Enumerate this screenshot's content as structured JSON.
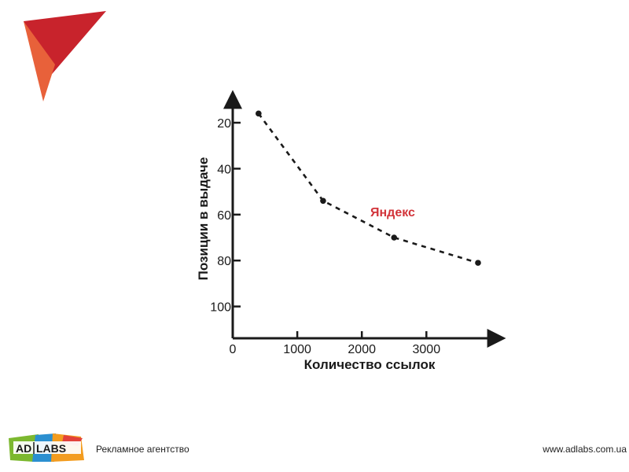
{
  "chart_data": {
    "type": "line",
    "title": "",
    "xlabel": "Количество ссылок",
    "ylabel": "Позиции в выдаче",
    "xlim": [
      0,
      4000
    ],
    "ylim": [
      115,
      10
    ],
    "y_inverted": true,
    "x_ticks": [
      0,
      1000,
      2000,
      3000
    ],
    "x_tick_labels": [
      "0",
      "1000",
      "2000",
      "3000"
    ],
    "y_ticks": [
      20,
      40,
      60,
      80,
      100
    ],
    "y_tick_labels": [
      "20",
      "40",
      "60",
      "80",
      "100"
    ],
    "grid": false,
    "line_style": "dashed",
    "series": [
      {
        "name": "Яндекс",
        "color": "#d2343a",
        "x": [
          400,
          1400,
          2500,
          3800
        ],
        "y": [
          16,
          54,
          70,
          81
        ]
      }
    ]
  },
  "footer": {
    "logo_text_left": "AD",
    "logo_text_right": "LABS",
    "agency_label": "Рекламное агентство",
    "url": "www.adlabs.com.ua"
  },
  "colors": {
    "corner_dark": "#c8232c",
    "corner_light": "#e8613a",
    "axis": "#1a1a1a",
    "series_label": "#d2343a"
  }
}
